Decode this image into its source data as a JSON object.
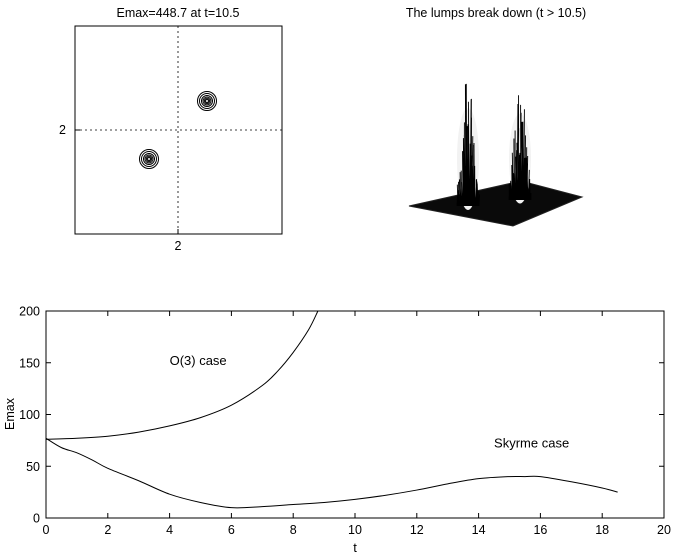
{
  "panels": {
    "contour": {
      "title": "Emax=448.7 at t=10.5",
      "xtick": "2",
      "ytick": "2"
    },
    "surface": {
      "title": "The lumps break down (t > 10.5)"
    }
  },
  "chart_data": {
    "type": "line",
    "xlabel": "t",
    "ylabel": "Emax",
    "xlim": [
      0,
      20
    ],
    "ylim": [
      0,
      200
    ],
    "xticks": [
      0,
      2,
      4,
      6,
      8,
      10,
      12,
      14,
      16,
      18,
      20
    ],
    "yticks": [
      0,
      50,
      100,
      150,
      200
    ],
    "grid": false,
    "series": [
      {
        "name": "O(3) case",
        "x": [
          0,
          1,
          2,
          3,
          4,
          5,
          6,
          7,
          7.5,
          8,
          8.5,
          8.8
        ],
        "values": [
          76,
          77,
          79,
          83,
          89,
          97,
          109,
          128,
          142,
          160,
          182,
          200
        ]
      },
      {
        "name": "Skyrme case",
        "x": [
          0,
          0.5,
          1,
          1.5,
          2,
          3,
          4,
          5,
          6,
          7,
          8,
          9,
          10,
          11,
          12,
          13,
          14,
          15,
          15.5,
          16,
          17,
          18,
          18.5
        ],
        "values": [
          77,
          68,
          63,
          56,
          48,
          36,
          23,
          15,
          10,
          11,
          13,
          15,
          18,
          22,
          27,
          33,
          38,
          40,
          40,
          40,
          35,
          29,
          25
        ]
      }
    ],
    "annotations": [
      {
        "text": "O(3) case",
        "x": 4,
        "y": 148
      },
      {
        "text": "Skyrme case",
        "x": 14.5,
        "y": 68
      }
    ]
  }
}
